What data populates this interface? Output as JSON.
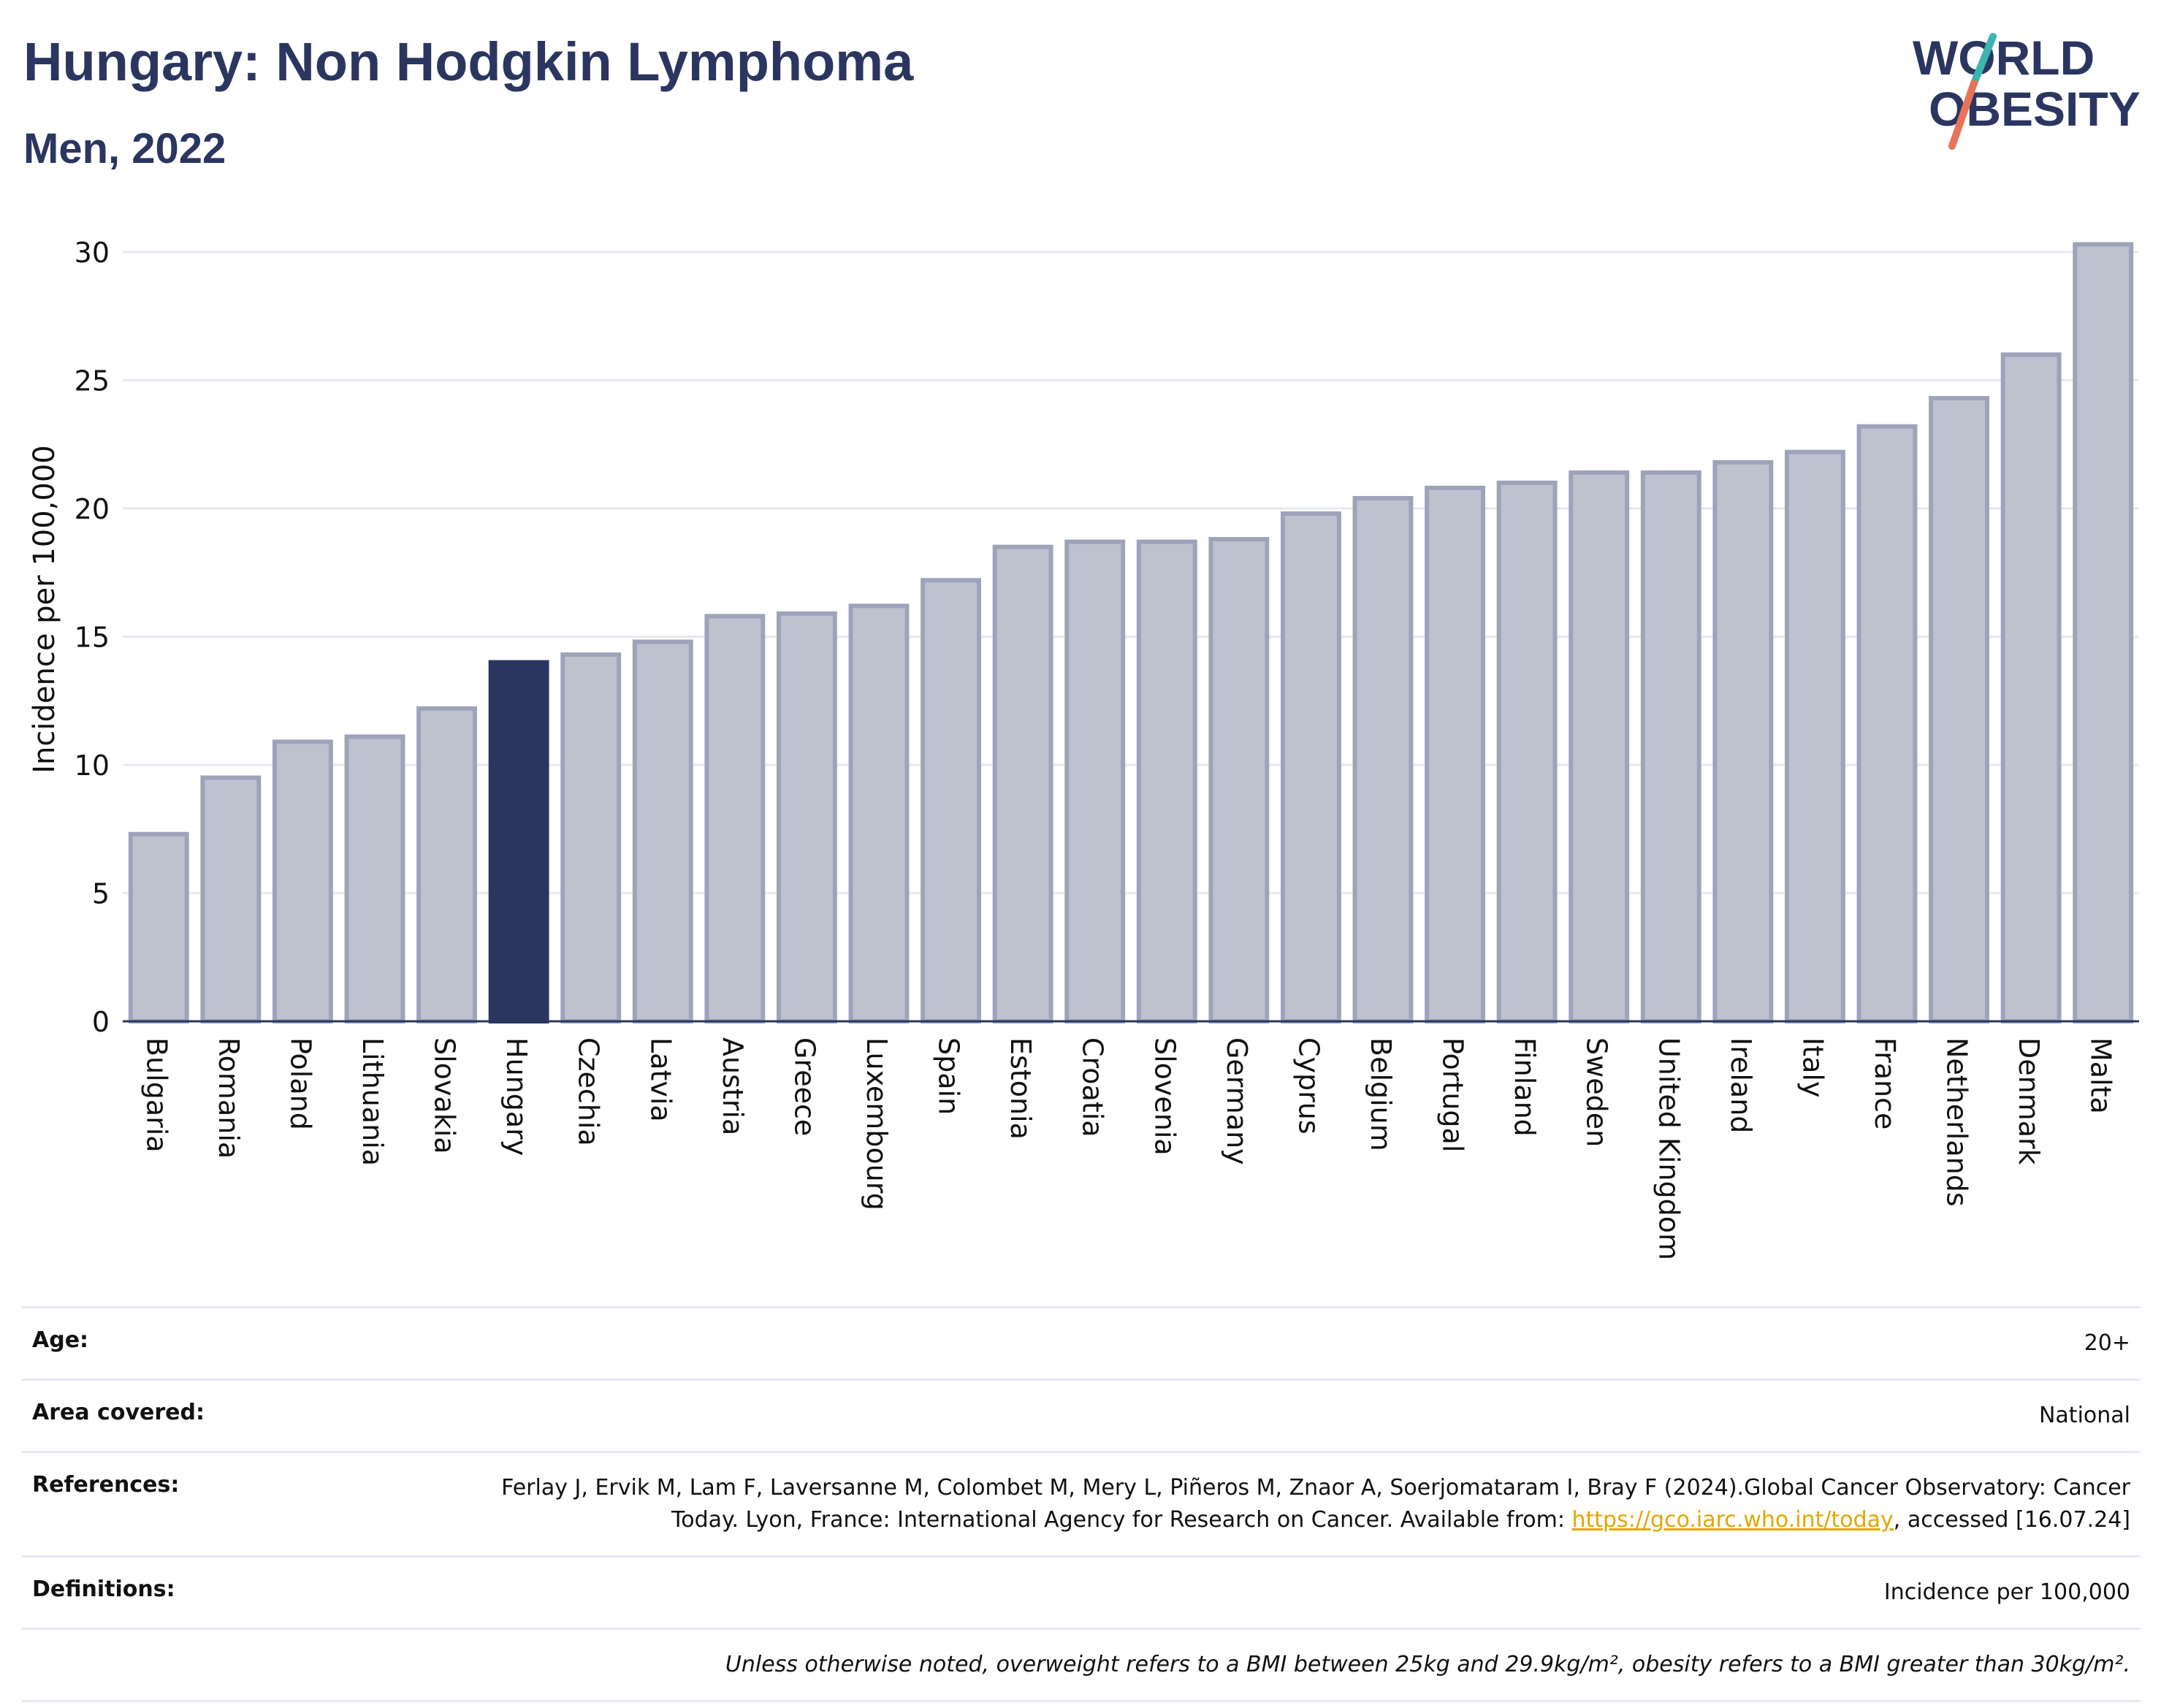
{
  "header": {
    "title": "Hungary: Non Hodgkin Lymphoma",
    "subtitle": "Men, 2022"
  },
  "logo": {
    "line1": "WORLD",
    "line2": "OBESITY",
    "colors": {
      "text": "#2b3660",
      "slash_top": "#3ab5b0",
      "slash_bottom": "#e8735a"
    }
  },
  "colors": {
    "highlight_bar": "#2b3660",
    "bar_fill": "#bec2cf",
    "bar_stroke": "#9ea3ba",
    "axis": "#2b3660",
    "grid": "#e6e9f0"
  },
  "chart_data": {
    "type": "bar",
    "title": "",
    "xlabel": "",
    "ylabel": "Incidence per 100,000",
    "ylim": [
      0,
      31
    ],
    "yticks": [
      0,
      5,
      10,
      15,
      20,
      25,
      30
    ],
    "grid": true,
    "highlight": "Hungary",
    "categories": [
      "Bulgaria",
      "Romania",
      "Poland",
      "Lithuania",
      "Slovakia",
      "Hungary",
      "Czechia",
      "Latvia",
      "Austria",
      "Greece",
      "Luxembourg",
      "Spain",
      "Estonia",
      "Croatia",
      "Slovenia",
      "Germany",
      "Cyprus",
      "Belgium",
      "Portugal",
      "Finland",
      "Sweden",
      "United Kingdom",
      "Ireland",
      "Italy",
      "France",
      "Netherlands",
      "Denmark",
      "Malta"
    ],
    "values": [
      7.3,
      9.5,
      10.9,
      11.1,
      12.2,
      14.0,
      14.3,
      14.8,
      15.8,
      15.9,
      16.2,
      17.2,
      18.5,
      18.7,
      18.7,
      18.8,
      19.8,
      20.4,
      20.8,
      21.0,
      21.4,
      21.4,
      21.8,
      22.2,
      23.2,
      24.3,
      26.0,
      30.3
    ]
  },
  "info": {
    "age_label": "Age:",
    "age_value": "20+",
    "area_label": "Area covered:",
    "area_value": "National",
    "references_label": "References:",
    "references_text_1": "Ferlay J, Ervik M, Lam F, Laversanne M, Colombet M, Mery L, Piñeros M, Znaor A, Soerjomataram I, Bray F (2024).Global Cancer Observatory: Cancer Today. Lyon, France: International Agency for Research on Cancer. Available from: ",
    "references_link": "https://gco.iarc.who.int/today",
    "references_text_2": ", accessed [16.07.24]",
    "definitions_label": "Definitions:",
    "definitions_value": "Incidence per 100,000",
    "note": "Unless otherwise noted, overweight refers to a BMI between 25kg and 29.9kg/m², obesity refers to a BMI greater than 30kg/m²."
  }
}
